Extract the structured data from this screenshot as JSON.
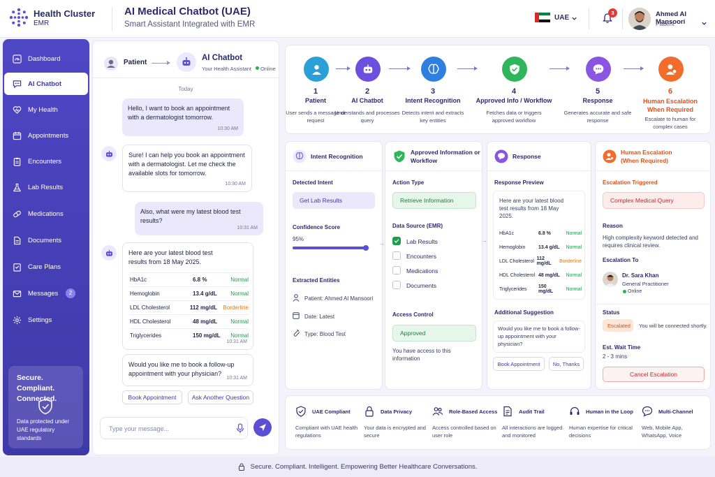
{
  "brand": {
    "name": "Health Cluster",
    "sub": "EMR"
  },
  "header": {
    "title": "AI Medical Chatbot (UAE)",
    "subtitle": "Smart Assistant Integrated with EMR",
    "language": "UAE",
    "notifications": "3",
    "user_name": "Ahmed Al Mansoori",
    "user_role": "Patient"
  },
  "sidebar": {
    "items": [
      {
        "label": "Dashboard",
        "icon": "dashboard-icon"
      },
      {
        "label": "AI Chatbot",
        "icon": "chat-icon"
      },
      {
        "label": "My Health",
        "icon": "heart-icon"
      },
      {
        "label": "Appointments",
        "icon": "calendar-icon"
      },
      {
        "label": "Encounters",
        "icon": "clipboard-icon"
      },
      {
        "label": "Lab Results",
        "icon": "flask-icon"
      },
      {
        "label": "Medications",
        "icon": "pill-icon"
      },
      {
        "label": "Documents",
        "icon": "document-icon"
      },
      {
        "label": "Care Plans",
        "icon": "care-plan-icon"
      },
      {
        "label": "Messages",
        "icon": "mail-icon",
        "badge": "2"
      },
      {
        "label": "Settings",
        "icon": "gear-icon"
      }
    ],
    "secure_title": "Secure. Compliant. Connected.",
    "secure_desc": "Data protected under UAE regulatory standards"
  },
  "chat": {
    "patient_label": "Patient",
    "bot_name": "AI Chatbot",
    "bot_sub": "Your Health Assistant",
    "status": "Online",
    "day": "Today",
    "messages": [
      {
        "from": "user",
        "text": "Hello, I want to book an appointment with a dermatologist tomorrow.",
        "time": "10:30 AM"
      },
      {
        "from": "bot",
        "text": "Sure! I can help you book an appointment with a dermatologist. Let me check the available slots for tomorrow.",
        "time": "10:30 AM"
      },
      {
        "from": "user",
        "text": "Also, what were my latest blood test results?",
        "time": "10:31 AM"
      },
      {
        "from": "bot",
        "text": "Here are your latest blood test results from 18 May 2025.",
        "time": "10:31 AM"
      },
      {
        "from": "bot",
        "text": "Would you like me to book a follow-up appointment with your physician?",
        "time": "10:31 AM"
      }
    ],
    "labs": [
      {
        "name": "HbA1c",
        "value": "6.8 %",
        "status": "Normal"
      },
      {
        "name": "Hemoglobin",
        "value": "13.4 g/dL",
        "status": "Normal"
      },
      {
        "name": "LDL Cholesterol",
        "value": "112 mg/dL",
        "status": "Borderline"
      },
      {
        "name": "HDL Cholesterol",
        "value": "48 mg/dL",
        "status": "Normal"
      },
      {
        "name": "Triglycerides",
        "value": "150 mg/dL",
        "status": "Normal"
      }
    ],
    "quick_replies": [
      "Book Appointment",
      "Ask Another Question"
    ],
    "input_placeholder": "Type your message..."
  },
  "flow": {
    "steps": [
      {
        "num": "1",
        "name": "Patient",
        "desc": "User sends a message or request",
        "color": "#2a9fd8"
      },
      {
        "num": "2",
        "name": "AI Chatbot",
        "desc": "Understands and processes query",
        "color": "#6d4fe0"
      },
      {
        "num": "3",
        "name": "Intent Recognition",
        "desc": "Detects intent and extracts key entities",
        "color": "#2f7fe0"
      },
      {
        "num": "4",
        "name": "Approved Info / Workflow",
        "desc": "Fetches data or triggers approved workflow",
        "color": "#2fb55a"
      },
      {
        "num": "5",
        "name": "Response",
        "desc": "Generates accurate and safe response",
        "color": "#8a55e0"
      },
      {
        "num": "6",
        "name": "Human Escalation When Required",
        "desc": "Escalate to human for complex cases",
        "color": "#f26d2b"
      }
    ]
  },
  "intent": {
    "title": "Intent Recognition",
    "detected_label": "Detected Intent",
    "detected_value": "Get Lab Results",
    "confidence_label": "Confidence Score",
    "confidence_value": "95%",
    "confidence": 0.95,
    "entities_label": "Extracted Entities",
    "entities": [
      "Patient: Ahmed Al Mansoori",
      "Date: Latest",
      "Type: Blood Test"
    ]
  },
  "approved": {
    "title": "Approved Information or Workflow",
    "action_label": "Action Type",
    "action_value": "Retrieve Information",
    "source_label": "Data Source (EMR)",
    "sources": [
      {
        "label": "Lab Results",
        "checked": true
      },
      {
        "label": "Encounters",
        "checked": false
      },
      {
        "label": "Medications",
        "checked": false
      },
      {
        "label": "Documents",
        "checked": false
      }
    ],
    "access_label": "Access Control",
    "access_value": "Approved",
    "access_desc": "You have access to this information"
  },
  "response": {
    "title": "Response",
    "preview_label": "Response Preview",
    "preview_text": "Here are your latest blood test results from 18 May 2025.",
    "suggestion_label": "Additional Suggestion",
    "suggestion_text": "Would you like me to book a follow-up appointment with your physician?",
    "buttons": [
      "Book Appointment",
      "No, Thanks"
    ]
  },
  "escalation": {
    "title": "Human Escalation (When Required)",
    "triggered_label": "Escalation Triggered",
    "triggered_value": "Complex Medical Query",
    "reason_label": "Reason",
    "reason_text": "High complexity keyword detected and requires clinical review.",
    "to_label": "Escalation To",
    "doctor_name": "Dr. Sara Khan",
    "doctor_role": "General Practitioner",
    "doctor_status": "Online",
    "status_label": "Status",
    "status_value": "Escalated",
    "status_note": "You will be connected shortly.",
    "wait_label": "Est. Wait Time",
    "wait_value": "2 - 3 mins",
    "cancel_label": "Cancel Escalation"
  },
  "features": [
    {
      "title": "UAE Compliant",
      "desc": "Compliant with UAE health regulations",
      "icon": "shield-check-icon"
    },
    {
      "title": "Data Privacy",
      "desc": "Your data is encrypted and secure",
      "icon": "lock-icon"
    },
    {
      "title": "Role-Based Access",
      "desc": "Access controlled based on user role",
      "icon": "users-icon"
    },
    {
      "title": "Audit Trail",
      "desc": "All interactions are logged and monitored",
      "icon": "audit-icon"
    },
    {
      "title": "Human in the Loop",
      "desc": "Human expertise for critical decisions",
      "icon": "headset-icon"
    },
    {
      "title": "Multi-Channel",
      "desc": "Web, Mobile App, WhatsApp, Voice",
      "icon": "chat-bubble-icon"
    }
  ],
  "footer": "Secure. Compliant. Intelligent. Empowering Better Healthcare Conversations."
}
